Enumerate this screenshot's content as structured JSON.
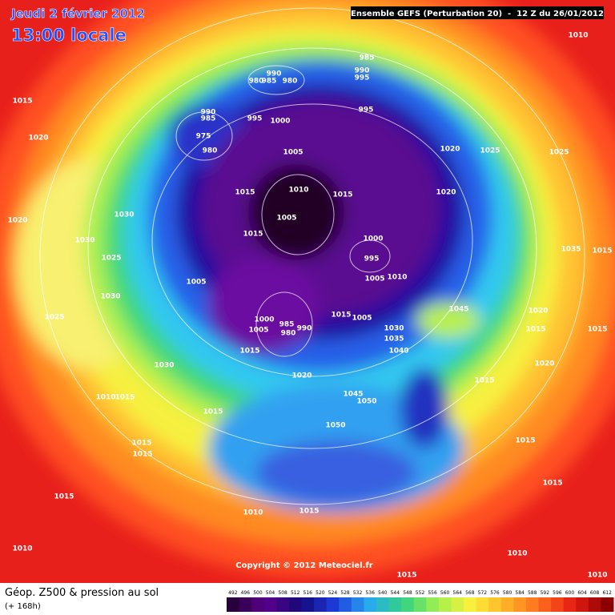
{
  "header": {
    "date": "Jeudi 2 février 2012",
    "time": "13:00 locale",
    "model": "Ensemble GEFS (Perturbation 20)  -  12 Z du 26/01/2012"
  },
  "map": {
    "copyright": "Copyright © 2012 Meteociel.fr",
    "pressure_labels": [
      1010,
      985,
      990,
      995,
      990,
      985,
      980,
      980,
      995,
      1015,
      990,
      985,
      995,
      1000,
      975,
      980,
      1020,
      1005,
      1020,
      1025,
      1025,
      1010,
      1015,
      1015,
      1020,
      1020,
      1030,
      1005,
      1015,
      1030,
      1000,
      995,
      1025,
      1035,
      1015,
      1005,
      1005,
      1010,
      1030,
      1045,
      1020,
      1025,
      1015,
      1005,
      1000,
      1005,
      985,
      990,
      980,
      1030,
      1015,
      1015,
      1035,
      1015,
      1040,
      1030,
      1020,
      1020,
      1015,
      1010,
      1015,
      1045,
      1050,
      1015,
      1050,
      1015,
      1015,
      1015,
      1015,
      1015,
      1010,
      1015,
      1010,
      1010,
      1015,
      1010
    ]
  },
  "legend": {
    "title": "Géop. Z500 & pression au sol",
    "lead": "(+ 168h)",
    "scale": [
      492,
      496,
      500,
      504,
      508,
      512,
      516,
      520,
      524,
      528,
      532,
      536,
      540,
      544,
      548,
      552,
      556,
      560,
      564,
      568,
      572,
      576,
      580,
      584,
      588,
      592,
      596,
      600,
      604,
      608,
      612
    ]
  }
}
